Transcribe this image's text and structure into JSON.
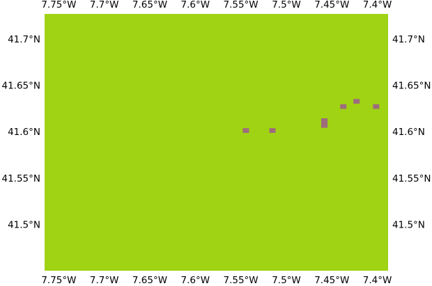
{
  "map": {
    "colors": {
      "background": "#a0d313",
      "patch": "#9d6c7d"
    },
    "lon_range": [
      -7.7656,
      -7.3882
    ],
    "lat_range": [
      41.4509,
      41.7277
    ],
    "lon_ticks": [
      {
        "value": -7.75,
        "label": "7.75°W"
      },
      {
        "value": -7.7,
        "label": "7.7°W"
      },
      {
        "value": -7.65,
        "label": "7.65°W"
      },
      {
        "value": -7.6,
        "label": "7.6°W"
      },
      {
        "value": -7.55,
        "label": "7.55°W"
      },
      {
        "value": -7.5,
        "label": "7.5°W"
      },
      {
        "value": -7.45,
        "label": "7.45°W"
      },
      {
        "value": -7.4,
        "label": "7.4°W"
      }
    ],
    "lat_ticks": [
      {
        "value": 41.7,
        "label": "41.7°N"
      },
      {
        "value": 41.65,
        "label": "41.65°N"
      },
      {
        "value": 41.6,
        "label": "41.6°N"
      },
      {
        "value": 41.55,
        "label": "41.55°N"
      },
      {
        "value": 41.5,
        "label": "41.5°N"
      }
    ],
    "patches": [
      {
        "lon_min": -7.5479,
        "lon_max": -7.541,
        "lat_min": 41.5994,
        "lat_max": 41.6045
      },
      {
        "lon_min": -7.5187,
        "lon_max": -7.5118,
        "lat_min": 41.5994,
        "lat_max": 41.6045
      },
      {
        "lon_min": -7.4617,
        "lon_max": -7.4547,
        "lat_min": 41.605,
        "lat_max": 41.6152
      },
      {
        "lon_min": -7.4409,
        "lon_max": -7.434,
        "lat_min": 41.6253,
        "lat_max": 41.6304
      },
      {
        "lon_min": -7.4263,
        "lon_max": -7.4194,
        "lat_min": 41.6309,
        "lat_max": 41.636
      },
      {
        "lon_min": -7.4048,
        "lon_max": -7.3979,
        "lat_min": 41.6253,
        "lat_max": 41.6304
      }
    ]
  }
}
